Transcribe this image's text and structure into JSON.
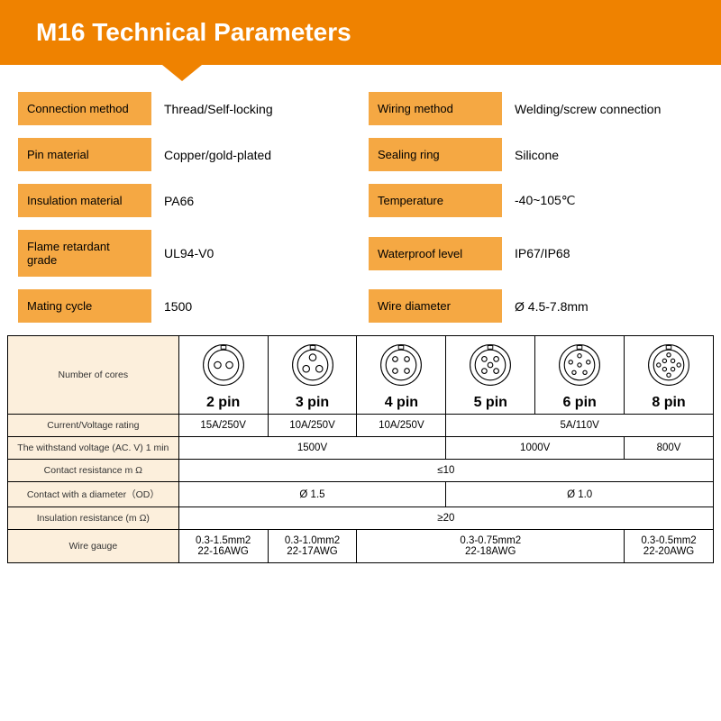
{
  "banner": {
    "title": "M16 Technical Parameters"
  },
  "specs": [
    [
      {
        "label": "Connection method",
        "value": "Thread/Self-locking"
      },
      {
        "label": "Wiring method",
        "value": "Welding/screw connection"
      }
    ],
    [
      {
        "label": "Pin material",
        "value": "Copper/gold-plated"
      },
      {
        "label": "Sealing ring",
        "value": "Silicone"
      }
    ],
    [
      {
        "label": "Insulation material",
        "value": "PA66"
      },
      {
        "label": "Temperature",
        "value": "-40~105℃"
      }
    ],
    [
      {
        "label": "Flame retardant grade",
        "value": "UL94-V0"
      },
      {
        "label": "Waterproof level",
        "value": "IP67/IP68"
      }
    ],
    [
      {
        "label": "Mating cycle",
        "value": "1500"
      },
      {
        "label": "Wire diameter",
        "value": "Ø 4.5-7.8mm"
      }
    ]
  ],
  "table": {
    "rowLabels": [
      "Number of cores",
      "Current/Voltage rating",
      "The withstand voltage (AC. V) 1 min",
      "Contact resistance m Ω",
      "Contact with a diameter（OD）",
      "Insulation resistance (m Ω)",
      "Wire gauge"
    ],
    "pins": [
      {
        "label": "2 pin",
        "holes": 2
      },
      {
        "label": "3 pin",
        "holes": 3
      },
      {
        "label": "4 pin",
        "holes": 4
      },
      {
        "label": "5 pin",
        "holes": 5
      },
      {
        "label": "6 pin",
        "holes": 6
      },
      {
        "label": "8 pin",
        "holes": 8
      }
    ],
    "rows": {
      "rating": [
        {
          "text": "15A/250V",
          "span": 1
        },
        {
          "text": "10A/250V",
          "span": 1
        },
        {
          "text": "10A/250V",
          "span": 1
        },
        {
          "text": "5A/110V",
          "span": 3
        }
      ],
      "withstand": [
        {
          "text": "1500V",
          "span": 3
        },
        {
          "text": "1000V",
          "span": 2
        },
        {
          "text": "800V",
          "span": 1
        }
      ],
      "contactRes": [
        {
          "text": "≤10",
          "span": 6
        }
      ],
      "diameter": [
        {
          "text": "Ø 1.5",
          "span": 3
        },
        {
          "text": "Ø 1.0",
          "span": 3
        }
      ],
      "insulation": [
        {
          "text": "≥20",
          "span": 6
        }
      ],
      "gauge": [
        {
          "text": "0.3-1.5mm2\n22-16AWG",
          "span": 1
        },
        {
          "text": "0.3-1.0mm2\n22-17AWG",
          "span": 1
        },
        {
          "text": "0.3-0.75mm2\n22-18AWG",
          "span": 3
        },
        {
          "text": "0.3-0.5mm2\n22-20AWG",
          "span": 1
        }
      ]
    }
  },
  "colors": {
    "bannerBg": "#ef8200",
    "labelBg": "#f5a843",
    "tableLabelBg": "#fcefdc",
    "border": "#000000"
  }
}
